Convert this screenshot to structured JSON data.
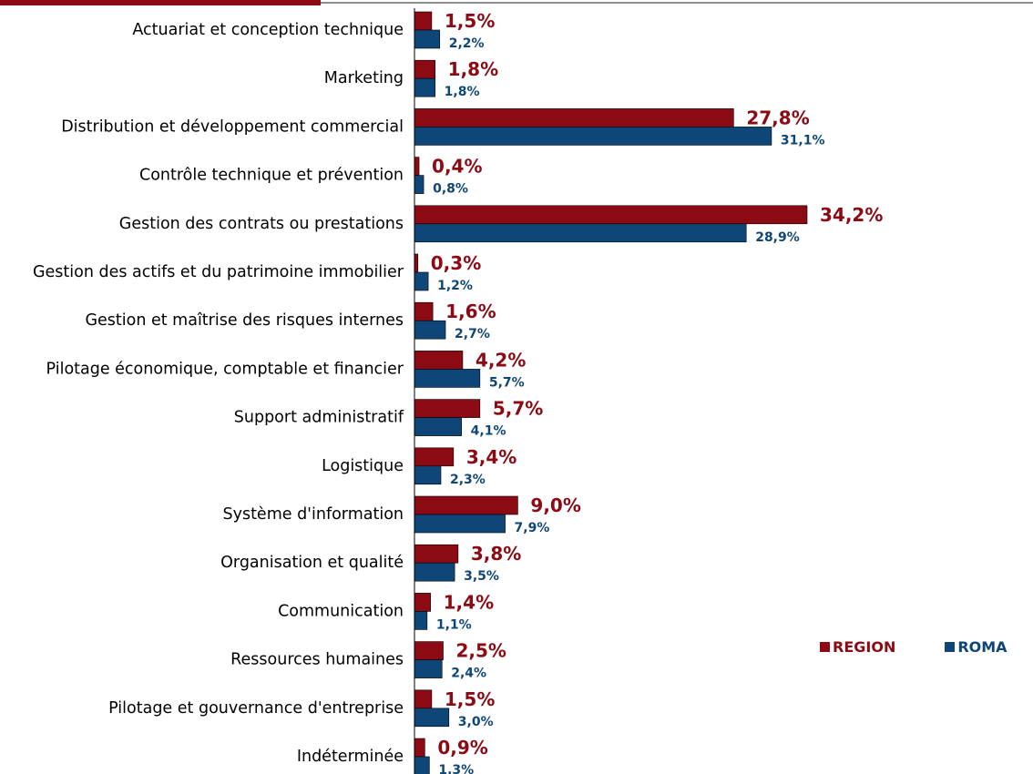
{
  "colors": {
    "region": "#8b0a14",
    "roma": "#0f4678",
    "topbar_accent": "#8b0a14",
    "topbar_line": "#8c8c8c"
  },
  "legend": {
    "items": [
      {
        "label": "REGION",
        "color": "#8b0a14"
      },
      {
        "label": "ROMA",
        "color": "#0f4678"
      }
    ],
    "position": "right"
  },
  "chart_data": {
    "type": "bar",
    "orientation": "horizontal",
    "categories": [
      "Actuariat et conception technique",
      "Marketing",
      "Distribution et développement commercial",
      "Contrôle technique et prévention",
      "Gestion des contrats ou prestations",
      "Gestion des actifs et du patrimoine immobilier",
      "Gestion et maîtrise des risques internes",
      "Pilotage économique, comptable et financier",
      "Support administratif",
      "Logistique",
      "Système d'information",
      "Organisation et qualité",
      "Communication",
      "Ressources humaines",
      "Pilotage et gouvernance d'entreprise",
      "Indéterminée"
    ],
    "series": [
      {
        "name": "REGION",
        "values": [
          1.5,
          1.8,
          27.8,
          0.4,
          34.2,
          0.3,
          1.6,
          4.2,
          5.7,
          3.4,
          9.0,
          3.8,
          1.4,
          2.5,
          1.5,
          0.9
        ],
        "labels": [
          "1,5%",
          "1,8%",
          "27,8%",
          "0,4%",
          "34,2%",
          "0,3%",
          "1,6%",
          "4,2%",
          "5,7%",
          "3,4%",
          "9,0%",
          "3,8%",
          "1,4%",
          "2,5%",
          "1,5%",
          "0,9%"
        ]
      },
      {
        "name": "ROMA",
        "values": [
          2.2,
          1.8,
          31.1,
          0.8,
          28.9,
          1.2,
          2.7,
          5.7,
          4.1,
          2.3,
          7.9,
          3.5,
          1.1,
          2.4,
          3.0,
          1.3
        ],
        "labels": [
          "2,2%",
          "1,8%",
          "31,1%",
          "0,8%",
          "28,9%",
          "1,2%",
          "2,7%",
          "5,7%",
          "4,1%",
          "2,3%",
          "7,9%",
          "3,5%",
          "1,1%",
          "2,4%",
          "3,0%",
          "1,3%"
        ]
      }
    ],
    "xlim": [
      0,
      34.2
    ],
    "grid": false,
    "title": "",
    "xlabel": "",
    "ylabel": ""
  }
}
